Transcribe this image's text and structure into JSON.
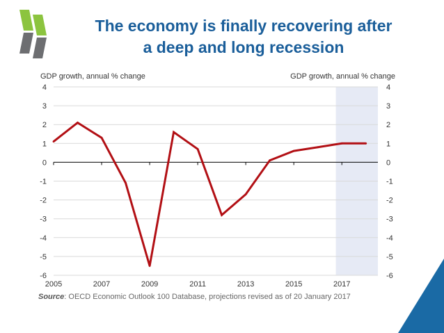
{
  "title": {
    "line1": "The economy is finally recovering after",
    "line2": "a deep and long recession"
  },
  "source": {
    "label": "Source",
    "text": ": OECD Economic Outlook 100 Database, projections revised as of 20 January 2017"
  },
  "chart_data": {
    "type": "line",
    "ylabel_left": "GDP growth, annual % change",
    "ylabel_right": "GDP growth, annual % change",
    "x": [
      2005,
      2006,
      2007,
      2008,
      2009,
      2010,
      2011,
      2012,
      2013,
      2014,
      2015,
      2016,
      2017,
      2018
    ],
    "series": [
      {
        "values": [
          1.1,
          2.1,
          1.3,
          -1.1,
          -5.5,
          1.6,
          0.7,
          -2.8,
          -1.7,
          0.1,
          0.6,
          0.8,
          1.0,
          1.0
        ]
      }
    ],
    "xlim": [
      2005,
      2018.5
    ],
    "ylim": [
      -6,
      4
    ],
    "x_ticks": [
      "2005",
      "2007",
      "2009",
      "2011",
      "2013",
      "2015",
      "2017"
    ],
    "y_ticks": [
      "4",
      "3",
      "2",
      "1",
      "0",
      "-1",
      "-2",
      "-3",
      "-4",
      "-5",
      "-6"
    ],
    "projection_shade": [
      2016.75,
      2018.5
    ],
    "grid": true,
    "colors": {
      "line": "#b20f14",
      "grid": "#d9d9d9",
      "shade": "#e6eaf5",
      "title": "#1a5e9a"
    }
  },
  "colors": {
    "logo_green": "#8cc43f",
    "logo_grey": "#6d6e71",
    "corner": "#1a6aa5"
  }
}
